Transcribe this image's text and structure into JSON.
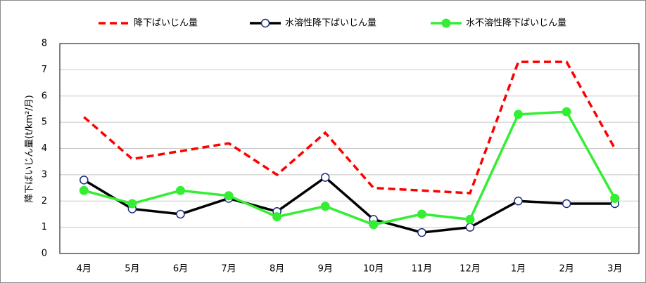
{
  "chart_data": {
    "type": "line",
    "y_label": "降下ばいじん量(t/km²/月)",
    "categories": [
      "4月",
      "5月",
      "6月",
      "7月",
      "8月",
      "9月",
      "10月",
      "11月",
      "12月",
      "1月",
      "2月",
      "3月"
    ],
    "series": [
      {
        "name": "降下ばいじん量",
        "color": "#ff0000",
        "line_style": "dashed",
        "marker": "none",
        "values": [
          5.2,
          3.6,
          3.9,
          4.2,
          3.0,
          4.6,
          2.5,
          2.4,
          2.3,
          7.3,
          7.3,
          4.0
        ]
      },
      {
        "name": "水溶性降下ばいじん量",
        "color": "#000000",
        "line_style": "solid",
        "marker": "open-circle",
        "values": [
          2.8,
          1.7,
          1.5,
          2.1,
          1.6,
          2.9,
          1.3,
          0.8,
          1.0,
          2.0,
          1.9,
          1.9
        ]
      },
      {
        "name": "水不溶性降下ばいじん量",
        "color": "#33ee33",
        "line_style": "solid",
        "marker": "filled-circle",
        "values": [
          2.4,
          1.9,
          2.4,
          2.2,
          1.4,
          1.8,
          1.1,
          1.5,
          1.3,
          5.3,
          5.4,
          2.1
        ]
      }
    ],
    "ylim": [
      0,
      8
    ],
    "yticks": [
      0,
      1,
      2,
      3,
      4,
      5,
      6,
      7,
      8
    ],
    "grid": true,
    "legend": "top"
  }
}
